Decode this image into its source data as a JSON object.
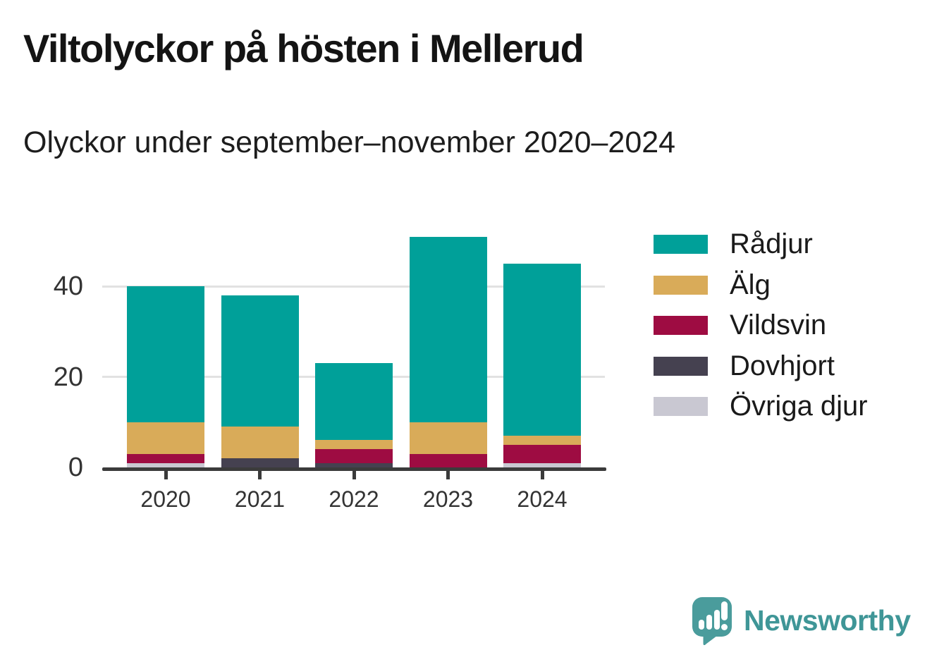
{
  "header": {
    "title": "Viltolyckor på hösten i Mellerud",
    "subtitle": "Olyckor under september–november 2020–2024"
  },
  "chart_data": {
    "type": "bar",
    "stacked": true,
    "title": "Viltolyckor på hösten i Mellerud",
    "subtitle": "Olyckor under september–november 2020–2024",
    "categories": [
      "2020",
      "2021",
      "2022",
      "2023",
      "2024"
    ],
    "series": [
      {
        "name": "Rådjur",
        "color": "#00a099",
        "values": [
          30,
          29,
          17,
          41,
          38
        ]
      },
      {
        "name": "Älg",
        "color": "#d9ab59",
        "values": [
          7,
          7,
          2,
          7,
          2
        ]
      },
      {
        "name": "Vildsvin",
        "color": "#9e0c42",
        "values": [
          2,
          0,
          3,
          3,
          4
        ]
      },
      {
        "name": "Dovhjort",
        "color": "#454150",
        "values": [
          0,
          2,
          1,
          0,
          0
        ]
      },
      {
        "name": "Övriga djur",
        "color": "#c9c8d2",
        "values": [
          1,
          0,
          0,
          0,
          1
        ]
      }
    ],
    "stack_order_bottom_to_top": [
      "Övriga djur",
      "Dovhjort",
      "Vildsvin",
      "Älg",
      "Rådjur"
    ],
    "xlabel": "",
    "ylabel": "",
    "yticks": [
      0,
      20,
      40
    ],
    "ylim": [
      0,
      52
    ],
    "grid": "horizontal",
    "legend_position": "right"
  },
  "colors": {
    "axis": "#3b3b3b",
    "gridline": "#e2e2e2",
    "tick_label": "#333333",
    "brand_teal": "#4a9c9c"
  },
  "footer": {
    "brand": "Newsworthy"
  }
}
